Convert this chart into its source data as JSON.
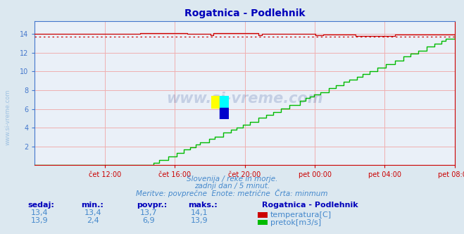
{
  "title": "Rogatnica - Podlehnik",
  "bg_color": "#dce8f0",
  "plot_bg_color": "#eaf0f8",
  "grid_color": "#f0b0b0",
  "title_color": "#0000bb",
  "axis_color_x": "#cc0000",
  "axis_color_y": "#4477cc",
  "text_color": "#4488cc",
  "xlabel_ticks": [
    "čet 12:00",
    "čet 16:00",
    "čet 20:00",
    "pet 00:00",
    "pet 04:00",
    "pet 08:00"
  ],
  "ylim": [
    0,
    15.4
  ],
  "yticks": [
    2,
    4,
    6,
    8,
    10,
    12,
    14
  ],
  "temp_color": "#cc0000",
  "temp_avg_color": "#cc0000",
  "flow_color": "#00bb00",
  "watermark_color": "#1a3a8a",
  "subtitle1": "Slovenija / reke in morje.",
  "subtitle2": "zadnji dan / 5 minut.",
  "subtitle3": "Meritve: povprečne  Enote: metrične  Črta: minmum",
  "legend_title": "Rogatnica - Podlehnik",
  "legend_items": [
    {
      "label": "temperatura[C]",
      "color": "#cc0000"
    },
    {
      "label": "pretok[m3/s]",
      "color": "#00bb00"
    }
  ],
  "table_headers": [
    "sedaj:",
    "min.:",
    "povpr.:",
    "maks.:"
  ],
  "table_row1": [
    "13,4",
    "13,4",
    "13,7",
    "14,1"
  ],
  "table_row2": [
    "13,9",
    "2,4",
    "6,9",
    "13,9"
  ],
  "temp_avg_value": 13.7,
  "n_points": 288
}
